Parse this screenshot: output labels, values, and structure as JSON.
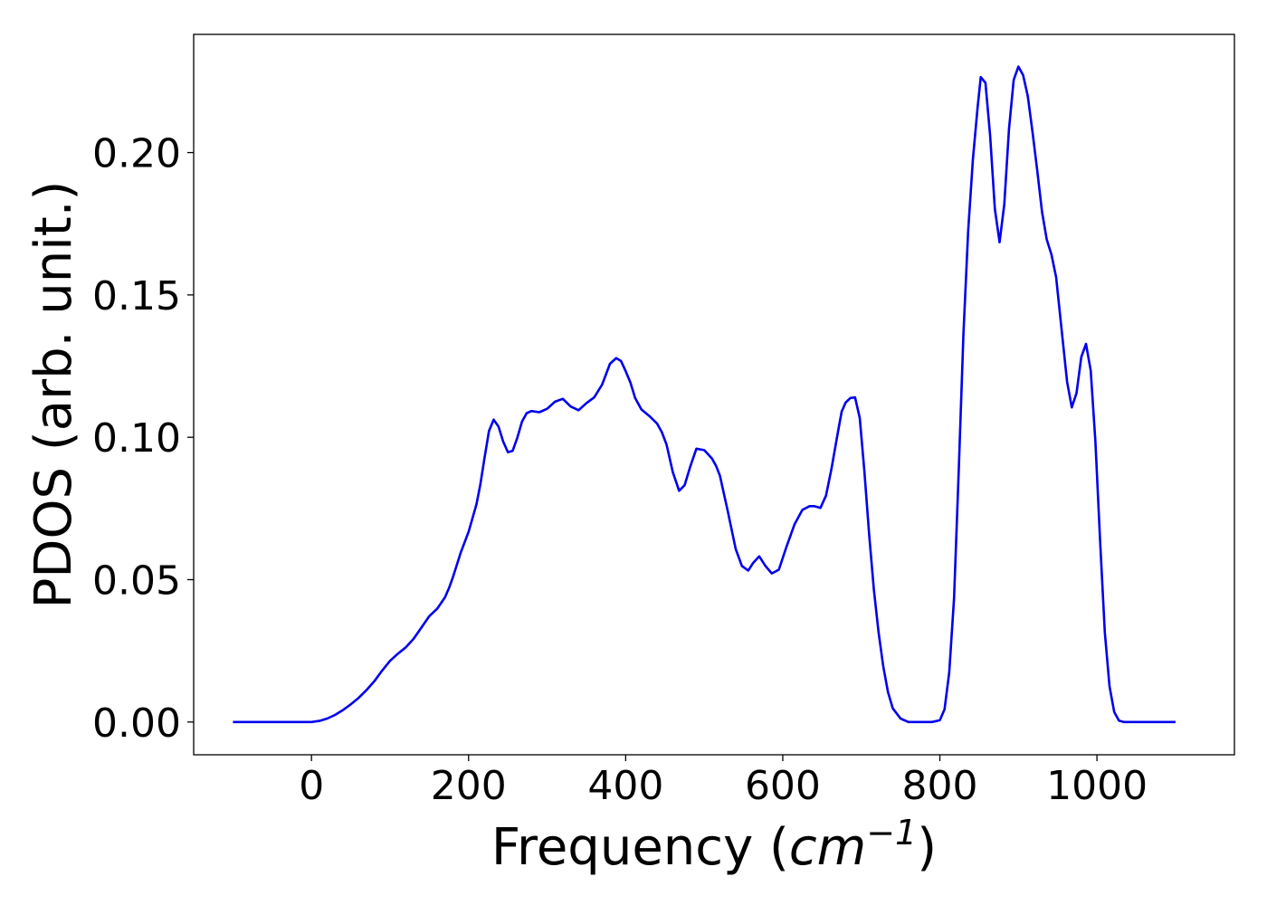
{
  "chart_data": {
    "type": "line",
    "title": "",
    "xlabel": "Frequency (cm⁻¹)",
    "xlabel_parts": {
      "prefix": "Frequency (",
      "unit_base": "cm",
      "unit_exp": "−1",
      "suffix": ")"
    },
    "ylabel": "PDOS (arb. unit.)",
    "xlim": [
      -150,
      1175
    ],
    "ylim": [
      -0.0115,
      0.2415
    ],
    "xticks": [
      0,
      200,
      400,
      600,
      800,
      1000
    ],
    "xtick_labels": [
      "0",
      "200",
      "400",
      "600",
      "800",
      "1000"
    ],
    "yticks": [
      0.0,
      0.05,
      0.1,
      0.15,
      0.2
    ],
    "ytick_labels": [
      "0.00",
      "0.05",
      "0.10",
      "0.15",
      "0.20"
    ],
    "grid": false,
    "legend": "none",
    "series": [
      {
        "color": "#0000ee",
        "x": [
          -100,
          -50,
          0,
          10,
          20,
          30,
          40,
          50,
          60,
          70,
          80,
          90,
          100,
          110,
          120,
          130,
          140,
          150,
          160,
          170,
          175,
          180,
          190,
          200,
          210,
          215,
          220,
          226,
          232,
          238,
          244,
          250,
          256,
          262,
          268,
          274,
          280,
          290,
          300,
          310,
          320,
          330,
          340,
          350,
          360,
          370,
          380,
          388,
          394,
          400,
          406,
          412,
          420,
          430,
          440,
          446,
          452,
          460,
          468,
          475,
          482,
          490,
          500,
          510,
          515,
          520,
          530,
          540,
          548,
          556,
          562,
          570,
          578,
          586,
          595,
          605,
          615,
          625,
          634,
          640,
          648,
          655,
          662,
          670,
          675,
          680,
          686,
          692,
          698,
          704,
          710,
          716,
          722,
          728,
          734,
          740,
          750,
          760,
          780,
          790,
          800,
          806,
          812,
          818,
          824,
          830,
          836,
          842,
          848,
          852,
          858,
          864,
          870,
          876,
          882,
          888,
          894,
          900,
          906,
          912,
          918,
          924,
          930,
          936,
          942,
          948,
          956,
          962,
          968,
          974,
          980,
          986,
          992,
          998,
          1004,
          1010,
          1016,
          1022,
          1028,
          1034,
          1040,
          1060,
          1100
        ],
        "y": [
          0.0,
          0.0,
          0.0,
          0.0004,
          0.0012,
          0.0025,
          0.0042,
          0.0062,
          0.0085,
          0.0112,
          0.0143,
          0.0181,
          0.0215,
          0.024,
          0.0262,
          0.0292,
          0.0332,
          0.0372,
          0.0398,
          0.0438,
          0.047,
          0.0508,
          0.0595,
          0.0668,
          0.0765,
          0.0835,
          0.0922,
          0.1022,
          0.1062,
          0.1038,
          0.0985,
          0.0948,
          0.0952,
          0.0998,
          0.1055,
          0.1085,
          0.1092,
          0.1088,
          0.11,
          0.1125,
          0.1135,
          0.1108,
          0.1095,
          0.112,
          0.114,
          0.1185,
          0.1258,
          0.1278,
          0.1268,
          0.1232,
          0.1192,
          0.1138,
          0.1098,
          0.1075,
          0.1048,
          0.1018,
          0.0975,
          0.0878,
          0.0812,
          0.0832,
          0.0895,
          0.096,
          0.0955,
          0.0925,
          0.09,
          0.0865,
          0.074,
          0.0608,
          0.0548,
          0.0532,
          0.0558,
          0.0582,
          0.0548,
          0.0522,
          0.0535,
          0.0618,
          0.0695,
          0.0745,
          0.0758,
          0.0758,
          0.0752,
          0.0795,
          0.089,
          0.1015,
          0.109,
          0.1122,
          0.1138,
          0.114,
          0.1068,
          0.0878,
          0.0658,
          0.0465,
          0.0315,
          0.0195,
          0.0105,
          0.0048,
          0.0012,
          0.0,
          0.0,
          0.0,
          0.0006,
          0.0045,
          0.0175,
          0.0435,
          0.0885,
          0.1365,
          0.1725,
          0.1975,
          0.2158,
          0.2265,
          0.2245,
          0.2058,
          0.1802,
          0.1685,
          0.1818,
          0.2082,
          0.2255,
          0.2302,
          0.2272,
          0.2198,
          0.2072,
          0.1935,
          0.1792,
          0.1695,
          0.1642,
          0.1562,
          0.1352,
          0.1195,
          0.1105,
          0.1155,
          0.1282,
          0.1328,
          0.1235,
          0.0985,
          0.0635,
          0.0315,
          0.0125,
          0.0035,
          0.0005,
          0.0,
          0.0,
          0.0,
          0.0
        ]
      }
    ]
  }
}
